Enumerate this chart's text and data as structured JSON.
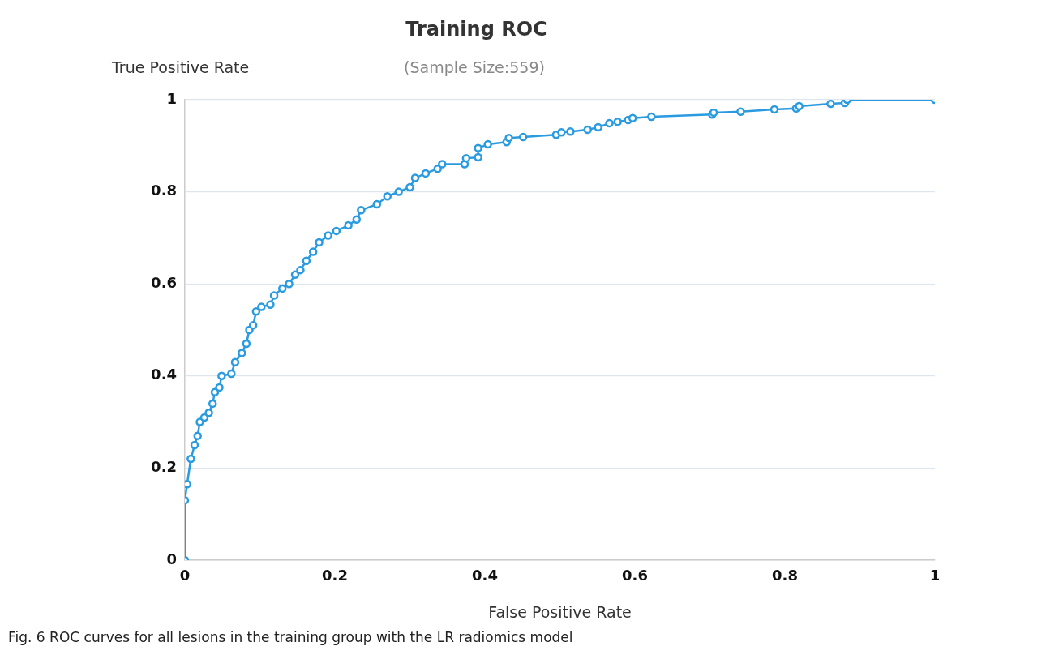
{
  "chart_data": {
    "type": "line",
    "title": "Training ROC",
    "subtitle": "(Sample Size:559)",
    "xlabel": "False Positive Rate",
    "ylabel": "True Positive Rate",
    "annotations": [
      "Fig. 6 ROC curves for all lesions in the training group with the LR radiomics model"
    ],
    "xlim": [
      0,
      1
    ],
    "xticks": [
      0,
      0.2,
      0.4,
      0.6,
      0.8,
      1
    ],
    "ylim": [
      0,
      1
    ],
    "yticks": [
      0,
      0.2,
      0.4,
      0.6,
      0.8,
      1
    ],
    "grid": "y",
    "marker": "circle",
    "line_style": "solid",
    "legend": false,
    "series": [
      {
        "color": "#2a9be0",
        "x": [
          0,
          0,
          0.003,
          0.008,
          0.013,
          0.017,
          0.02,
          0.026,
          0.032,
          0.037,
          0.04,
          0.046,
          0.049,
          0.062,
          0.067,
          0.076,
          0.082,
          0.086,
          0.091,
          0.095,
          0.102,
          0.114,
          0.119,
          0.13,
          0.139,
          0.147,
          0.154,
          0.162,
          0.171,
          0.179,
          0.191,
          0.202,
          0.218,
          0.229,
          0.235,
          0.256,
          0.27,
          0.285,
          0.3,
          0.307,
          0.321,
          0.337,
          0.343,
          0.373,
          0.375,
          0.391,
          0.391,
          0.404,
          0.429,
          0.432,
          0.451,
          0.495,
          0.502,
          0.514,
          0.537,
          0.551,
          0.566,
          0.577,
          0.591,
          0.597,
          0.622,
          0.703,
          0.705,
          0.741,
          0.786,
          0.815,
          0.819,
          0.861,
          0.88,
          0.883,
          1
        ],
        "values": [
          0,
          0.13,
          0.165,
          0.22,
          0.25,
          0.27,
          0.3,
          0.31,
          0.32,
          0.34,
          0.365,
          0.375,
          0.4,
          0.405,
          0.43,
          0.45,
          0.47,
          0.5,
          0.51,
          0.54,
          0.55,
          0.555,
          0.575,
          0.59,
          0.6,
          0.62,
          0.63,
          0.65,
          0.67,
          0.69,
          0.705,
          0.715,
          0.727,
          0.74,
          0.76,
          0.773,
          0.79,
          0.8,
          0.81,
          0.83,
          0.84,
          0.85,
          0.86,
          0.86,
          0.873,
          0.875,
          0.895,
          0.903,
          0.908,
          0.917,
          0.919,
          0.924,
          0.929,
          0.931,
          0.935,
          0.94,
          0.949,
          0.952,
          0.956,
          0.96,
          0.963,
          0.968,
          0.972,
          0.974,
          0.979,
          0.981,
          0.986,
          0.991,
          0.993,
          1,
          1
        ]
      }
    ]
  }
}
